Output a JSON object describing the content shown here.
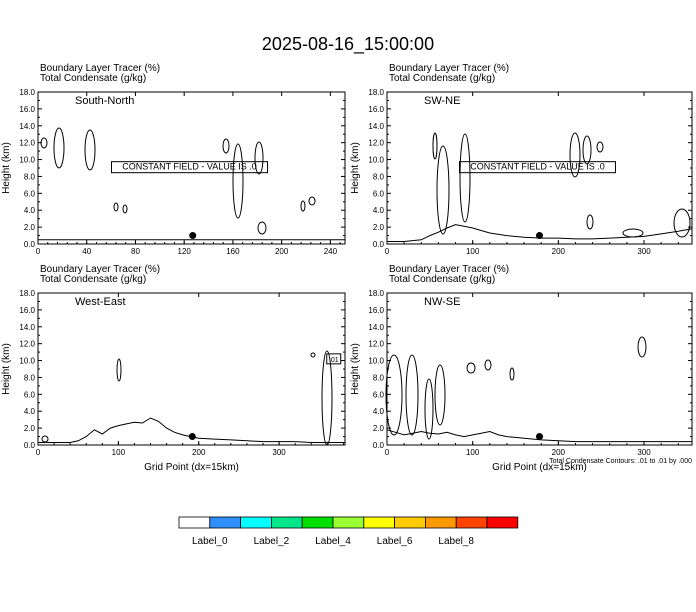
{
  "title": "2025-08-16_15:00:00",
  "chart_data": [
    {
      "type": "line",
      "panel": "South-North",
      "header_line1": "Boundary Layer Tracer   (%)",
      "header_line2": "Total Condensate   (g/kg)",
      "ylabel": "Height (km)",
      "xlabel": "",
      "xlim": [
        0,
        252
      ],
      "ylim": [
        0,
        18
      ],
      "xticks": [
        0,
        40,
        80,
        120,
        160,
        200,
        240
      ],
      "yticks": [
        "0.0",
        "2.0",
        "4.0",
        "6.0",
        "8.0",
        "10.0",
        "12.0",
        "14.0",
        "16.0",
        "18.0"
      ],
      "note": "CONSTANT FIELD - VALUE IS .0",
      "marker": {
        "x": 127,
        "y": 1.0
      },
      "boundary_layer_top": {
        "x": [
          0,
          10,
          20,
          30,
          40,
          60,
          80,
          100,
          110,
          120,
          130,
          140,
          150,
          160,
          170,
          180,
          190,
          200,
          210,
          220,
          230,
          240,
          252
        ],
        "y": [
          0.5,
          0.5,
          0.5,
          0.5,
          0.5,
          0.5,
          0.5,
          0.5,
          0.5,
          0.5,
          0.5,
          0.5,
          0.5,
          0.5,
          0.5,
          0.5,
          0.5,
          0.5,
          0.5,
          0.5,
          0.5,
          0.5,
          0.5
        ]
      }
    },
    {
      "type": "line",
      "panel": "SW-NE",
      "header_line1": "Boundary Layer Tracer   (%)",
      "header_line2": "Total Condensate   (g/kg)",
      "ylabel": "Height (km)",
      "xlabel": "",
      "xlim": [
        0,
        356
      ],
      "ylim": [
        0,
        18
      ],
      "xticks": [
        0,
        100,
        200,
        300
      ],
      "yticks": [
        "0.0",
        "2.0",
        "4.0",
        "6.0",
        "8.0",
        "10.0",
        "12.0",
        "14.0",
        "16.0",
        "18.0"
      ],
      "note": "CONSTANT FIELD - VALUE IS .0",
      "marker": {
        "x": 178,
        "y": 1.0
      },
      "boundary_layer_top": {
        "x": [
          0,
          20,
          40,
          50,
          60,
          70,
          80,
          90,
          100,
          110,
          120,
          140,
          160,
          180,
          200,
          220,
          240,
          260,
          280,
          300,
          320,
          340,
          356
        ],
        "y": [
          0.3,
          0.3,
          0.5,
          1.0,
          1.4,
          1.9,
          2.3,
          2.1,
          1.9,
          1.6,
          1.3,
          1.0,
          0.8,
          0.7,
          0.7,
          0.6,
          0.6,
          0.7,
          0.8,
          0.9,
          1.2,
          1.5,
          1.8
        ]
      }
    },
    {
      "type": "line",
      "panel": "West-East",
      "header_line1": "Boundary Layer Tracer   (%)",
      "header_line2": "Total Condensate   (g/kg)",
      "ylabel": "Height (km)",
      "xlabel": "Grid Point (dx=15km)",
      "xlim": [
        0,
        382
      ],
      "ylim": [
        0,
        18
      ],
      "xticks": [
        0,
        100,
        200,
        300
      ],
      "yticks": [
        "0.0",
        "2.0",
        "4.0",
        "6.0",
        "8.0",
        "10.0",
        "12.0",
        "14.0",
        "16.0",
        "18.0"
      ],
      "contour_label": ".01",
      "marker": {
        "x": 192,
        "y": 1.0
      },
      "boundary_layer_top": {
        "x": [
          0,
          20,
          40,
          50,
          60,
          70,
          80,
          90,
          100,
          110,
          120,
          130,
          140,
          150,
          160,
          170,
          180,
          190,
          200,
          220,
          240,
          260,
          280,
          300,
          320,
          340,
          360,
          382
        ],
        "y": [
          0.3,
          0.3,
          0.3,
          0.5,
          1.0,
          1.8,
          1.3,
          2.0,
          2.3,
          2.5,
          2.7,
          2.6,
          3.2,
          2.8,
          2.0,
          1.5,
          1.2,
          1.0,
          0.8,
          0.7,
          0.6,
          0.5,
          0.4,
          0.4,
          0.4,
          0.3,
          0.3,
          0.3
        ]
      }
    },
    {
      "type": "line",
      "panel": "NW-SE",
      "header_line1": "Boundary Layer Tracer   (%)",
      "header_line2": "Total Condensate   (g/kg)",
      "ylabel": "Height (km)",
      "xlabel": "Grid Point (dx=15km)",
      "xlim": [
        0,
        356
      ],
      "ylim": [
        0,
        18
      ],
      "xticks": [
        0,
        100,
        200,
        300
      ],
      "yticks": [
        "0.0",
        "2.0",
        "4.0",
        "6.0",
        "8.0",
        "10.0",
        "12.0",
        "14.0",
        "16.0",
        "18.0"
      ],
      "footnote": "Total Condensate Contours: .01 to .01 by .000",
      "marker": {
        "x": 178,
        "y": 1.0
      },
      "boundary_layer_top": {
        "x": [
          0,
          10,
          20,
          30,
          40,
          50,
          60,
          70,
          80,
          90,
          100,
          110,
          120,
          130,
          140,
          150,
          160,
          180,
          200,
          220,
          240,
          260,
          280,
          300,
          320,
          340,
          356
        ],
        "y": [
          1.8,
          1.5,
          1.2,
          1.4,
          1.6,
          1.4,
          1.3,
          1.5,
          1.2,
          1.0,
          1.2,
          1.4,
          1.6,
          1.2,
          1.0,
          0.9,
          0.8,
          0.6,
          0.5,
          0.4,
          0.4,
          0.4,
          0.4,
          0.4,
          0.4,
          0.4,
          0.4
        ]
      }
    }
  ],
  "legend": {
    "colors": [
      "#ffffff",
      "#2f8fff",
      "#00ffff",
      "#00e68a",
      "#00e000",
      "#99ff33",
      "#ffff00",
      "#ffcc00",
      "#ff9900",
      "#ff4400",
      "#ff0000"
    ],
    "labels": [
      "Label_0",
      "Label_2",
      "Label_4",
      "Label_6",
      "Label_8"
    ]
  }
}
